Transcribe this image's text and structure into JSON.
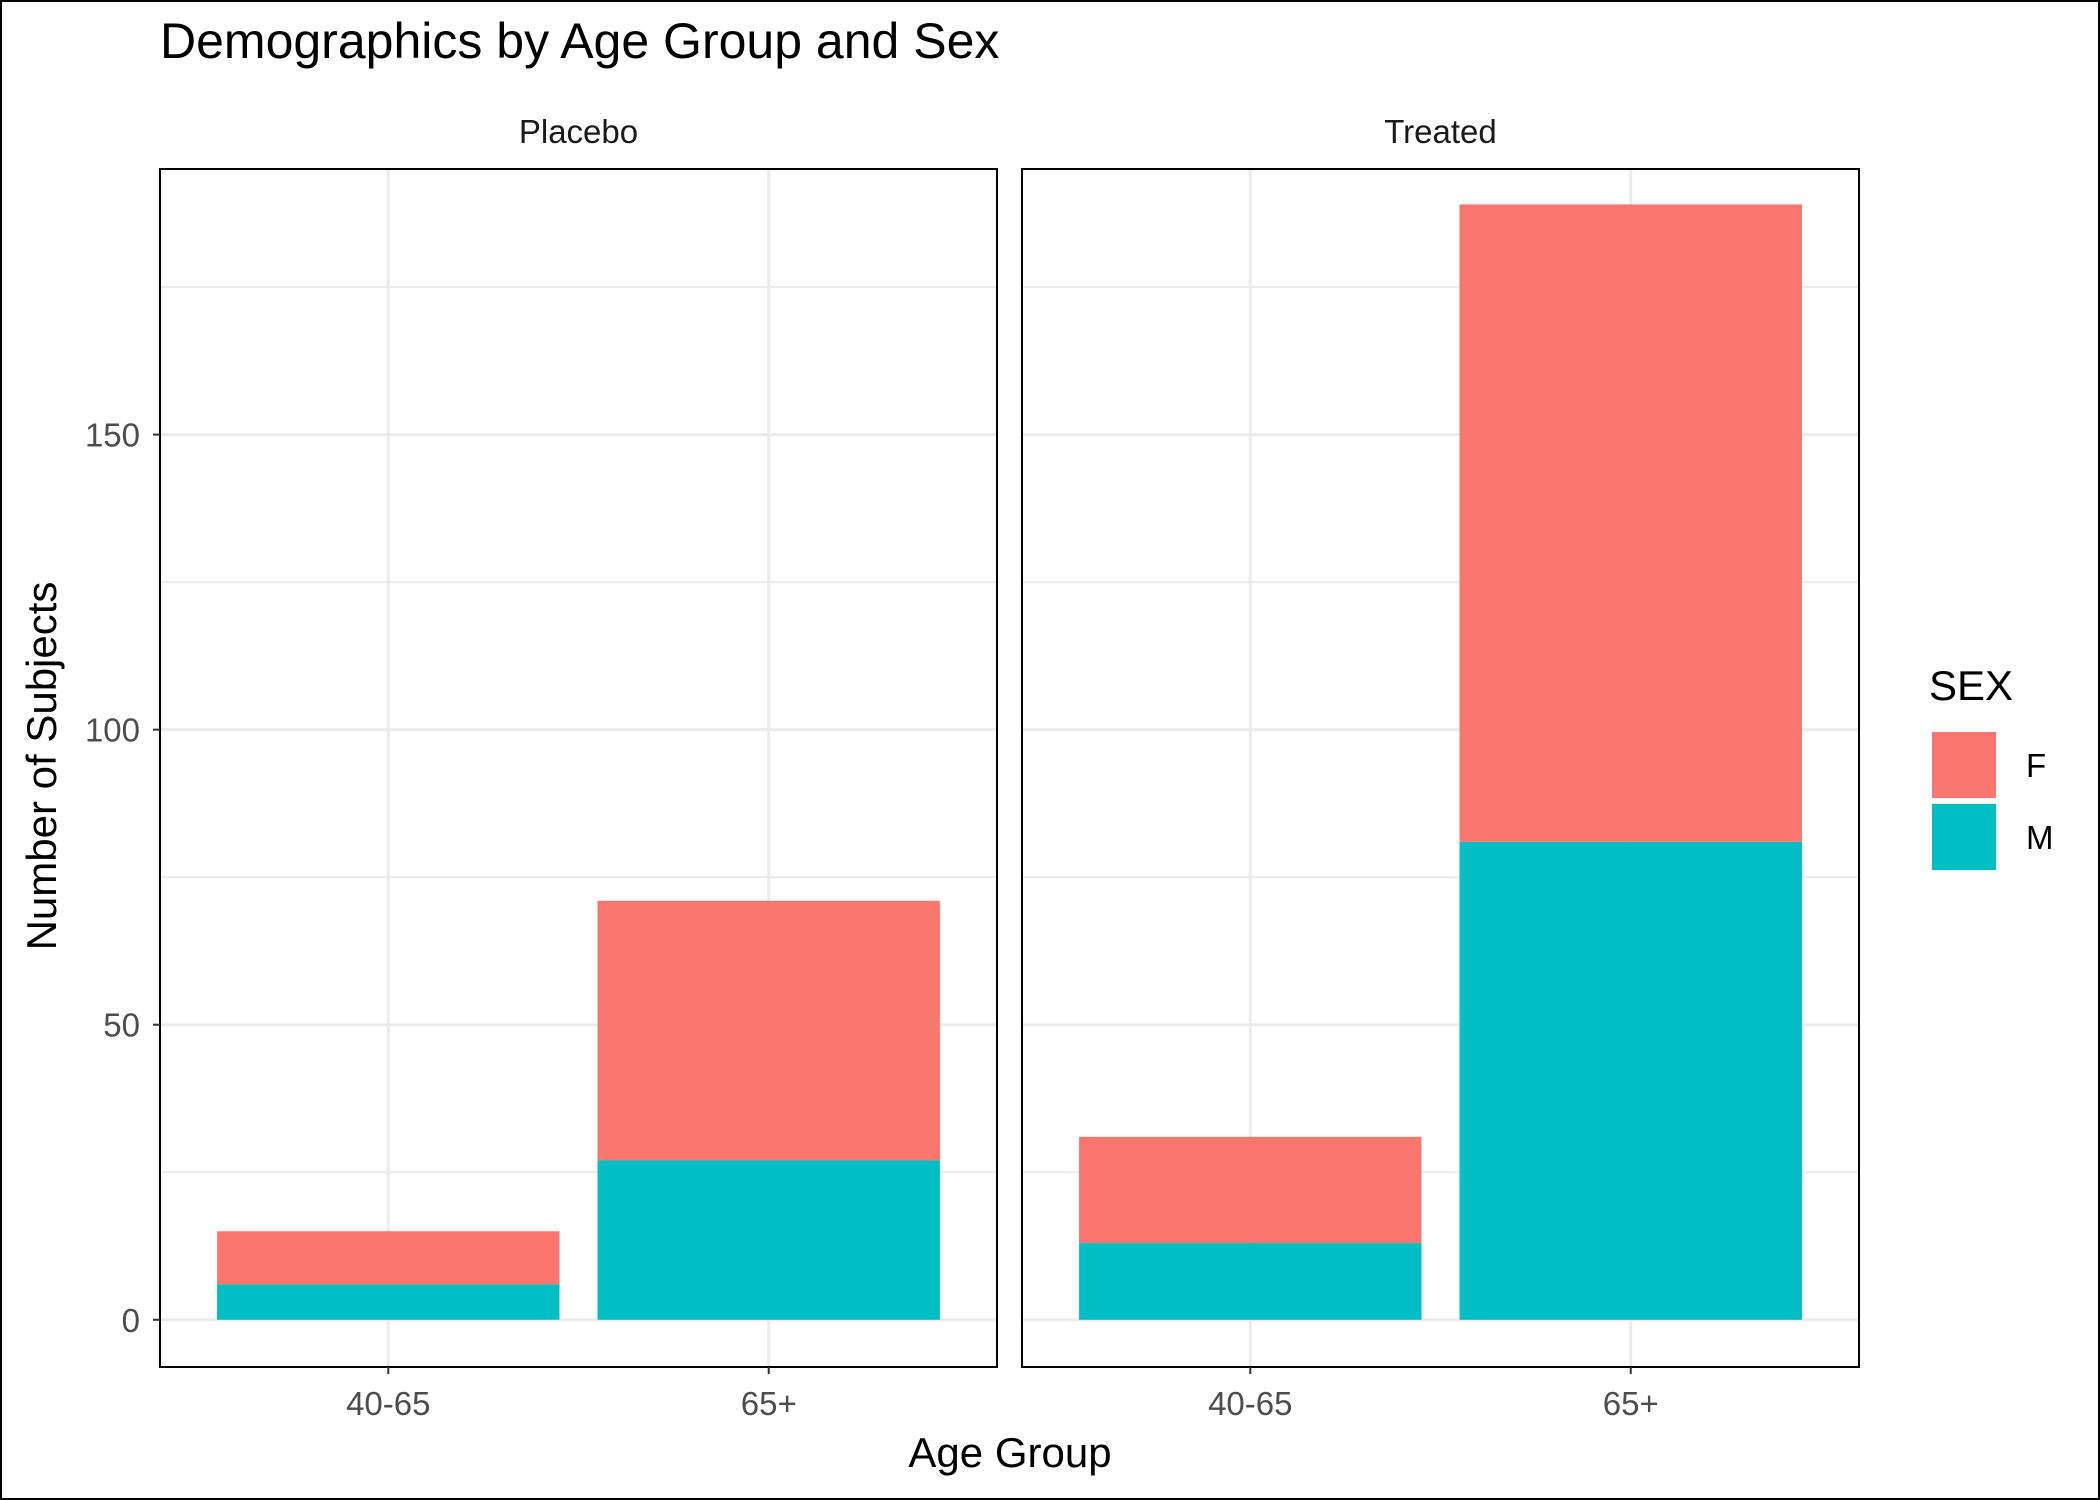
{
  "chart_data": {
    "type": "bar",
    "stacked": true,
    "title": "Demographics by Age Group and Sex",
    "xlabel": "Age Group",
    "ylabel": "Number of Subjects",
    "ylim": [
      -8,
      195
    ],
    "yticks": [
      0,
      50,
      100,
      150
    ],
    "y_minor_ticks": [
      25,
      75,
      125,
      175
    ],
    "grid": true,
    "categories": [
      "40-65",
      "65+"
    ],
    "facets": [
      {
        "label": "Placebo",
        "series": [
          {
            "name": "M",
            "values": [
              6,
              27
            ]
          },
          {
            "name": "F",
            "values": [
              9,
              44
            ]
          }
        ]
      },
      {
        "label": "Treated",
        "series": [
          {
            "name": "M",
            "values": [
              13,
              81
            ]
          },
          {
            "name": "F",
            "values": [
              18,
              108
            ]
          }
        ]
      }
    ],
    "legend": {
      "title": "SEX",
      "position": "right",
      "entries": [
        {
          "label": "F",
          "color": "#F8766D"
        },
        {
          "label": "M",
          "color": "#00BFC4"
        }
      ]
    }
  }
}
